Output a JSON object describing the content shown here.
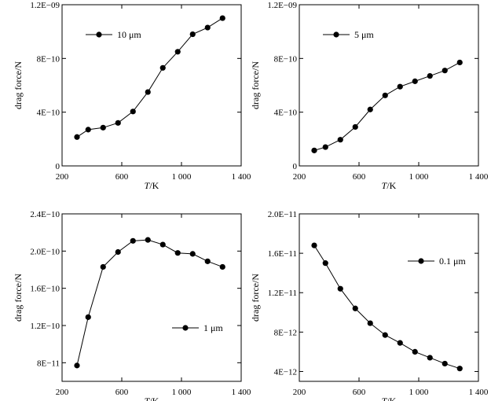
{
  "chart_data": [
    {
      "type": "line",
      "legend": "10 μm",
      "legend_position": "top-left",
      "xlabel_italic": "T",
      "xlabel_unit": "/K",
      "ylabel": "drag force/N",
      "xlim": [
        200,
        1400
      ],
      "ylim": [
        0,
        1.2e-09
      ],
      "xticks": [
        200,
        600,
        1000,
        1400
      ],
      "xtick_labels": [
        "200",
        "600",
        "1 000",
        "1 400"
      ],
      "yticks": [
        0,
        4e-10,
        8e-10,
        1.2e-09
      ],
      "ytick_labels": [
        "0",
        "4E−10",
        "8E−10",
        "1.2E−09"
      ],
      "x": [
        300,
        375,
        475,
        575,
        675,
        775,
        875,
        975,
        1075,
        1175,
        1275
      ],
      "values": [
        2.15e-10,
        2.7e-10,
        2.85e-10,
        3.2e-10,
        4.05e-10,
        5.5e-10,
        7.3e-10,
        8.5e-10,
        9.8e-10,
        1.03e-09,
        1.1e-09
      ]
    },
    {
      "type": "line",
      "legend": "5 μm",
      "legend_position": "top-left",
      "xlabel_italic": "T",
      "xlabel_unit": "/K",
      "ylabel": "drag force/N",
      "xlim": [
        200,
        1400
      ],
      "ylim": [
        0,
        1.2e-09
      ],
      "xticks": [
        200,
        600,
        1000,
        1400
      ],
      "xtick_labels": [
        "200",
        "600",
        "1 000",
        "1 400"
      ],
      "yticks": [
        0,
        4e-10,
        8e-10,
        1.2e-09
      ],
      "ytick_labels": [
        "0",
        "4E−10",
        "8E−10",
        "1.2E−09"
      ],
      "x": [
        300,
        375,
        475,
        575,
        675,
        775,
        875,
        975,
        1075,
        1175,
        1275
      ],
      "values": [
        1.15e-10,
        1.4e-10,
        1.95e-10,
        2.9e-10,
        4.2e-10,
        5.25e-10,
        5.9e-10,
        6.3e-10,
        6.7e-10,
        7.1e-10,
        7.7e-10
      ]
    },
    {
      "type": "line",
      "legend": "1 μm",
      "legend_position": "bottom-right",
      "xlabel_italic": "T",
      "xlabel_unit": "/K",
      "ylabel": "drag force/N",
      "xlim": [
        200,
        1400
      ],
      "ylim": [
        6e-11,
        2.4e-10
      ],
      "xticks": [
        200,
        600,
        1000,
        1400
      ],
      "xtick_labels": [
        "200",
        "600",
        "1 000",
        "1 400"
      ],
      "yticks": [
        8e-11,
        1.2e-10,
        1.6e-10,
        2e-10,
        2.4e-10
      ],
      "ytick_labels": [
        "8E−11",
        "1.2E−10",
        "1.6E−10",
        "2.0E−10",
        "2.4E−10"
      ],
      "x": [
        300,
        375,
        475,
        575,
        675,
        775,
        875,
        975,
        1075,
        1175,
        1275
      ],
      "values": [
        7.7e-11,
        1.29e-10,
        1.83e-10,
        1.99e-10,
        2.11e-10,
        2.12e-10,
        2.07e-10,
        1.98e-10,
        1.97e-10,
        1.89e-10,
        1.83e-10
      ]
    },
    {
      "type": "line",
      "legend": "0.1 μm",
      "legend_position": "top-right",
      "xlabel_italic": "T",
      "xlabel_unit": "/K",
      "ylabel": "drag force/N",
      "xlim": [
        200,
        1400
      ],
      "ylim": [
        3e-12,
        2e-11
      ],
      "xticks": [
        200,
        600,
        1000,
        1400
      ],
      "xtick_labels": [
        "200",
        "600",
        "1 000",
        "1 400"
      ],
      "yticks": [
        4e-12,
        8e-12,
        1.2e-11,
        1.6e-11,
        2e-11
      ],
      "ytick_labels": [
        "4E−12",
        "8E−12",
        "1.2E−11",
        "1.6E−11",
        "2.0E−11"
      ],
      "x": [
        300,
        375,
        475,
        575,
        675,
        775,
        875,
        975,
        1075,
        1175,
        1275
      ],
      "values": [
        1.68e-11,
        1.5e-11,
        1.24e-11,
        1.04e-11,
        8.9e-12,
        7.7e-12,
        6.9e-12,
        6e-12,
        5.4e-12,
        4.8e-12,
        4.3e-12
      ]
    }
  ]
}
